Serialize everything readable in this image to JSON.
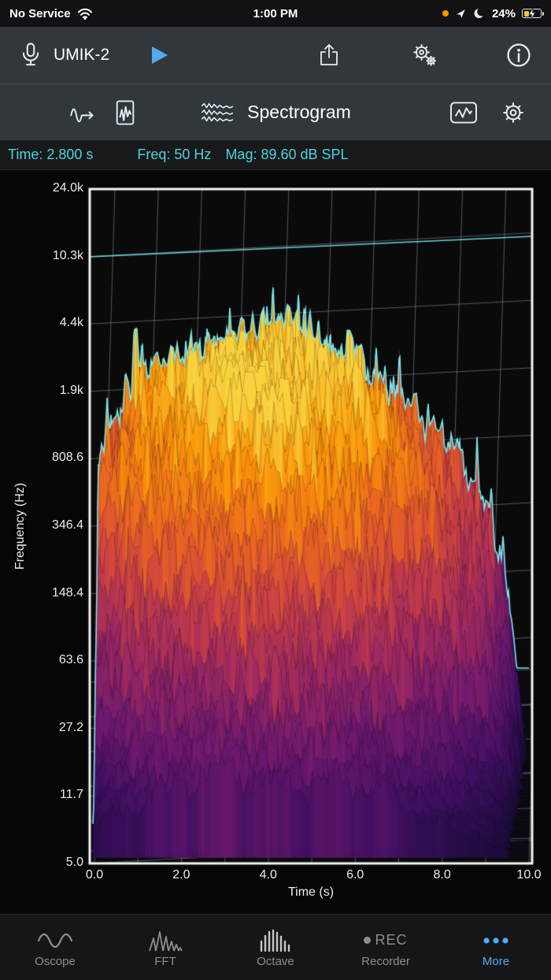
{
  "colors": {
    "accent_blue": "#55aaf1",
    "readout_teal": "#55d0da",
    "trace_cyan": "#7ce6ef",
    "battery_yellow": "#f2c63f",
    "status_orange_dot": "#ff9500"
  },
  "status_bar": {
    "carrier": "No Service",
    "time": "1:00 PM",
    "battery_percent": "24%",
    "icons": [
      "wifi-icon",
      "orange-privacy-dot",
      "location-arrow-icon",
      "moon-icon",
      "battery-charging-icon"
    ]
  },
  "toolbar": {
    "device_name": "UMIK-2",
    "icons": {
      "mic": "microphone-icon",
      "play": "play-icon",
      "share": "share-icon",
      "settings": "settings-gears-icon",
      "info": "info-icon"
    }
  },
  "view_bar": {
    "title": "Spectrogram",
    "icons": [
      "waveform-route-icon",
      "file-waveform-icon",
      "spectrogram-waves-icon",
      "chart-frame-icon",
      "gear-icon"
    ]
  },
  "readout": {
    "time": "Time: 2.800 s",
    "freq": "Freq: 50 Hz",
    "mag": "Mag: 89.60 dB SPL"
  },
  "chart_data": {
    "type": "heatmap",
    "subtype": "3d-waterfall-spectrogram",
    "xlabel": "Time (s)",
    "ylabel": "Frequency (Hz)",
    "x_ticks": [
      "0.0",
      "2.0",
      "4.0",
      "6.0",
      "8.0",
      "10.0"
    ],
    "x_range_s": [
      0,
      10
    ],
    "y_ticks": [
      "24.0k",
      "10.3k",
      "4.4k",
      "1.9k",
      "808.6",
      "346.4",
      "148.4",
      "63.6",
      "27.2",
      "11.7",
      "5.0"
    ],
    "freq_bins_hz": [
      24000,
      10300,
      4400,
      1900,
      808.6,
      346.4,
      148.4,
      63.6,
      27.2,
      11.7,
      5.0
    ],
    "freq_scale": "log",
    "time_bins_s": [
      0,
      1,
      2,
      3,
      4,
      5,
      6,
      7,
      8,
      9,
      10
    ],
    "magnitude_db_spl": [
      [
        42,
        55,
        58,
        60,
        62,
        60,
        58,
        55,
        50,
        44,
        28
      ],
      [
        48,
        62,
        65,
        68,
        69,
        67,
        64,
        60,
        55,
        48,
        30
      ],
      [
        55,
        70,
        74,
        77,
        78,
        76,
        72,
        67,
        61,
        52,
        32
      ],
      [
        64,
        76,
        81,
        84,
        85,
        83,
        79,
        73,
        66,
        56,
        34
      ],
      [
        70,
        80,
        84,
        88,
        89,
        87,
        83,
        77,
        68,
        58,
        36
      ],
      [
        70,
        78,
        82,
        86,
        89,
        86,
        81,
        75,
        66,
        56,
        35
      ],
      [
        60,
        71,
        76,
        80,
        81,
        79,
        75,
        69,
        61,
        51,
        33
      ],
      [
        52,
        62,
        66,
        69,
        71,
        69,
        65,
        59,
        53,
        45,
        31
      ],
      [
        44,
        52,
        55,
        57,
        59,
        57,
        53,
        49,
        44,
        38,
        29
      ],
      [
        38,
        45,
        47,
        49,
        51,
        49,
        47,
        43,
        39,
        34,
        27
      ],
      [
        34,
        40,
        42,
        44,
        45,
        43,
        41,
        39,
        35,
        31,
        26
      ]
    ],
    "mag_range_db": [
      28,
      90
    ],
    "colormap": "inferno",
    "grid": true,
    "cursor_readout": {
      "time_s": 2.8,
      "freq_hz": 50,
      "mag_db_spl": 89.6
    }
  },
  "tab_bar": {
    "active_label": "More",
    "items": [
      {
        "label": "Oscope",
        "icon": "sine-wave-icon",
        "active": false
      },
      {
        "label": "FFT",
        "icon": "fft-peaks-icon",
        "active": false
      },
      {
        "label": "Octave",
        "icon": "octave-bars-icon",
        "active": false
      },
      {
        "label": "Recorder",
        "icon": "rec-icon",
        "icon_text": "REC",
        "active": false
      },
      {
        "label": "More",
        "icon": "ellipsis-icon",
        "active": true
      }
    ]
  }
}
